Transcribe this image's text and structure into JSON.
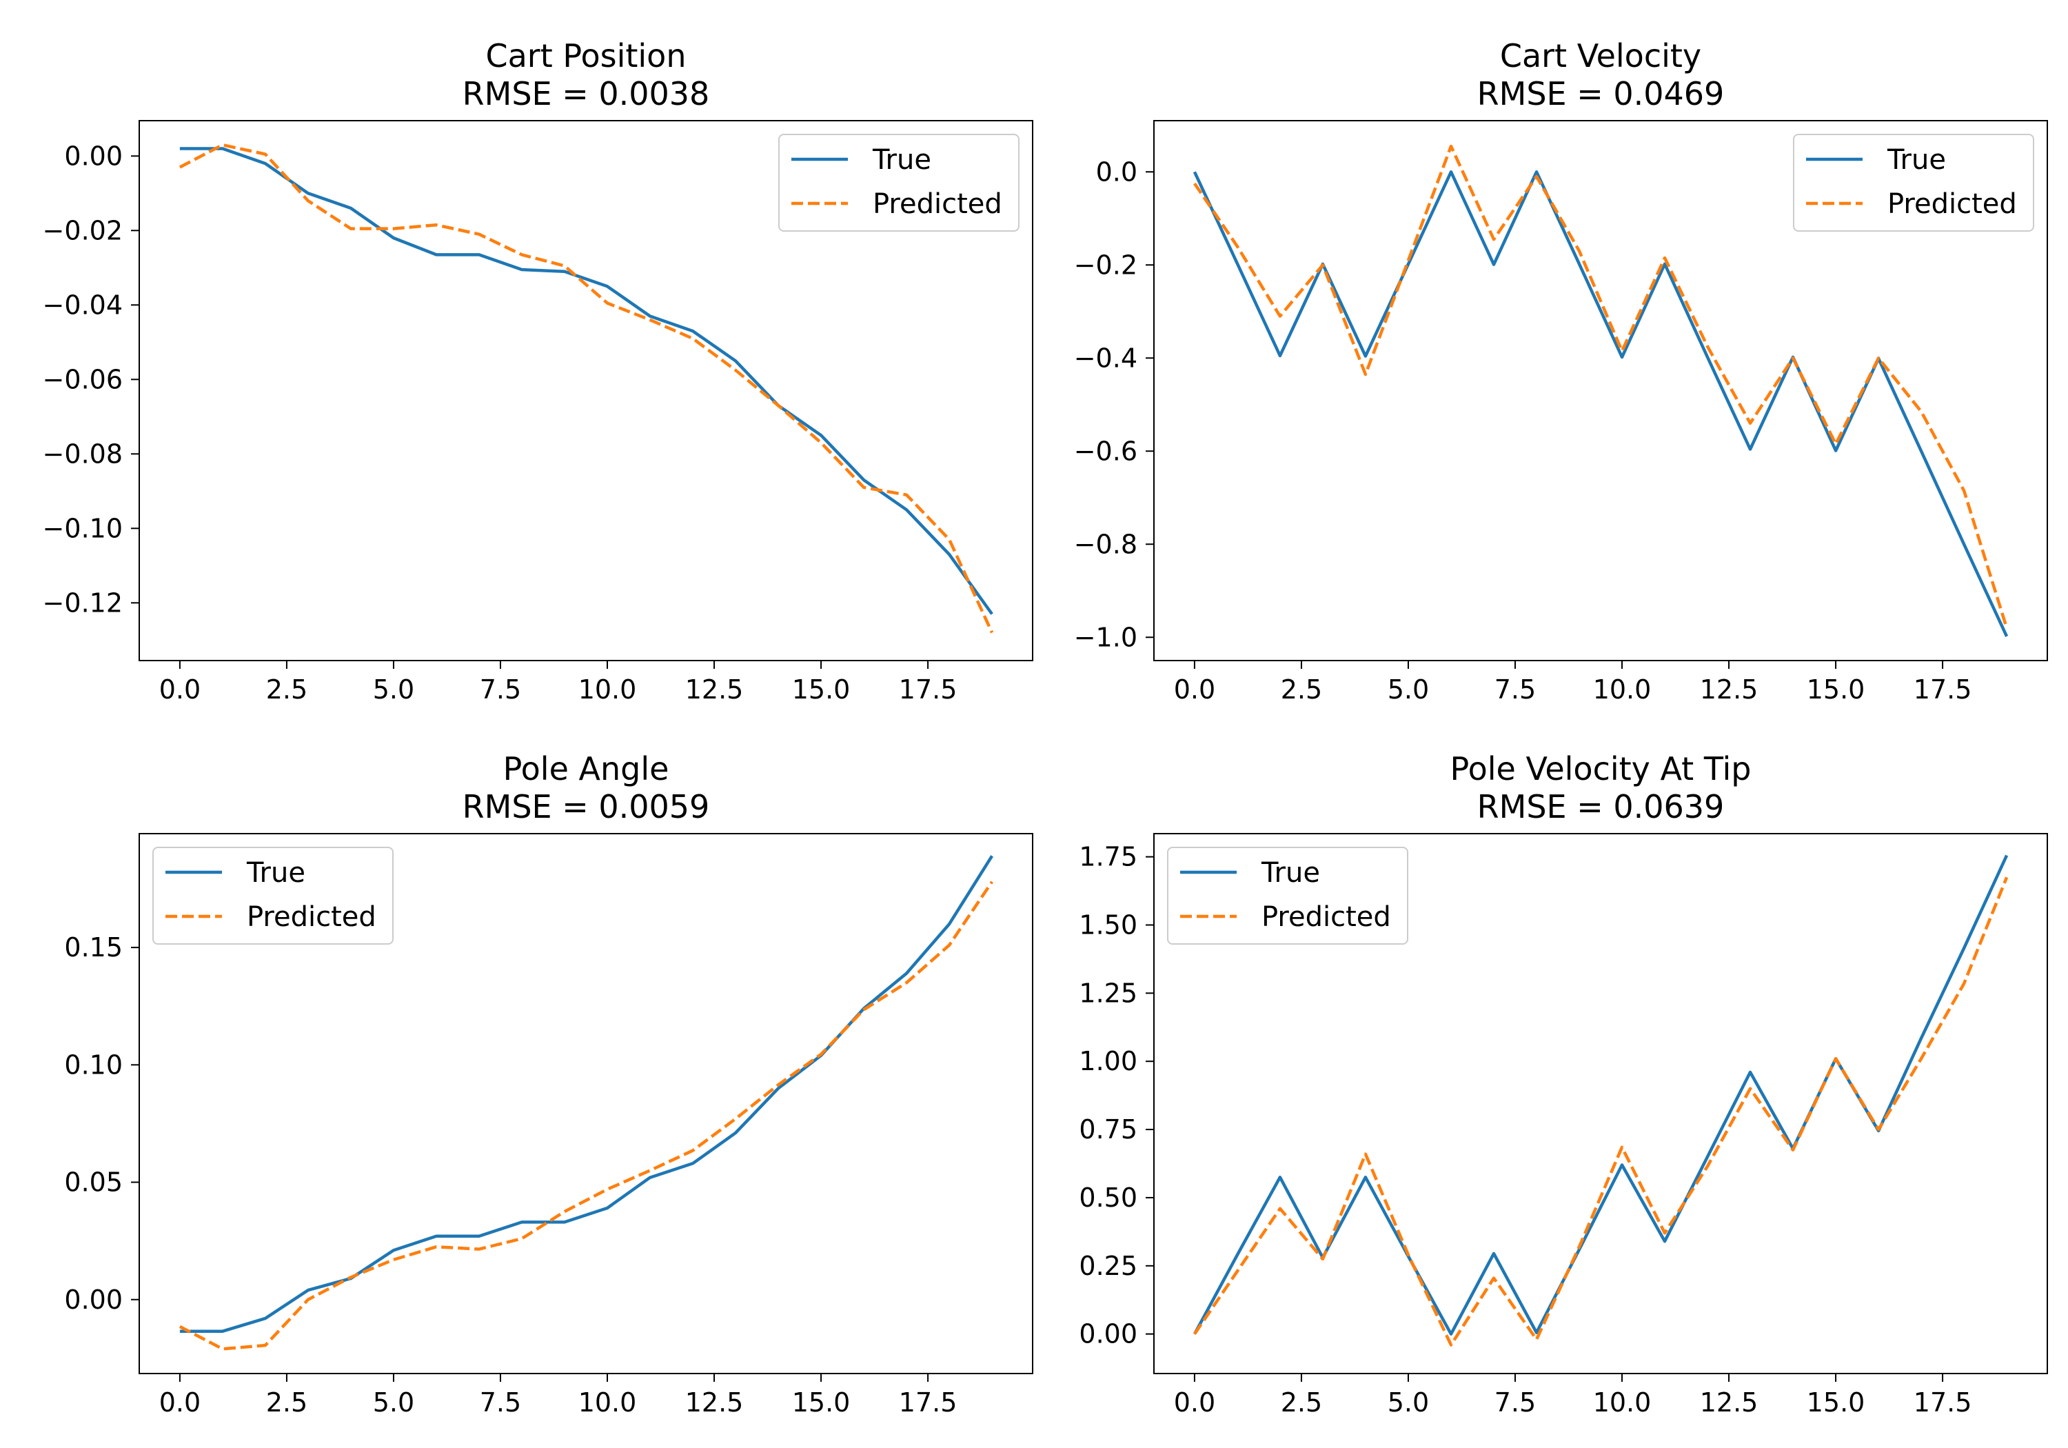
{
  "chart_data": [
    {
      "type": "line",
      "title": "Cart Position",
      "subtitle": "RMSE = 0.0038",
      "x": [
        0,
        1,
        2,
        3,
        4,
        5,
        6,
        7,
        8,
        9,
        10,
        11,
        12,
        13,
        14,
        15,
        16,
        17,
        18,
        19
      ],
      "series": [
        {
          "name": "True",
          "color": "#1f77b4",
          "style": "solid",
          "values": [
            0.002,
            0.002,
            -0.002,
            -0.01,
            -0.014,
            -0.022,
            -0.0265,
            -0.0265,
            -0.0305,
            -0.031,
            -0.035,
            -0.043,
            -0.047,
            -0.055,
            -0.067,
            -0.075,
            -0.087,
            -0.095,
            -0.107,
            -0.123
          ]
        },
        {
          "name": "Predicted",
          "color": "#ff7f0e",
          "style": "dashed",
          "values": [
            -0.003,
            0.003,
            0.0005,
            -0.012,
            -0.0195,
            -0.0195,
            -0.0185,
            -0.021,
            -0.0265,
            -0.0295,
            -0.0395,
            -0.044,
            -0.049,
            -0.0575,
            -0.067,
            -0.077,
            -0.089,
            -0.091,
            -0.103,
            -0.128
          ]
        }
      ],
      "xlim": [
        -0.95,
        19.95
      ],
      "ylim": [
        -0.1355,
        0.0095
      ],
      "xticks": [
        0,
        2.5,
        5,
        7.5,
        10,
        12.5,
        15,
        17.5
      ],
      "xtick_labels": [
        "0.0",
        "2.5",
        "5.0",
        "7.5",
        "10.0",
        "12.5",
        "15.0",
        "17.5"
      ],
      "yticks": [
        0,
        -0.02,
        -0.04,
        -0.06,
        -0.08,
        -0.1,
        -0.12
      ],
      "ytick_labels": [
        "0.00",
        "−0.02",
        "−0.04",
        "−0.06",
        "−0.08",
        "−0.10",
        "−0.12"
      ],
      "legend": "upper right",
      "grid": false
    },
    {
      "type": "line",
      "title": "Cart Velocity",
      "subtitle": "RMSE = 0.0469",
      "x": [
        0,
        1,
        2,
        3,
        4,
        5,
        6,
        7,
        8,
        9,
        10,
        11,
        12,
        13,
        14,
        15,
        16,
        17,
        18,
        19
      ],
      "series": [
        {
          "name": "True",
          "color": "#1f77b4",
          "style": "solid",
          "values": [
            0.0,
            -0.197,
            -0.395,
            -0.198,
            -0.396,
            -0.198,
            0.0,
            -0.199,
            0.0,
            -0.198,
            -0.398,
            -0.198,
            -0.398,
            -0.596,
            -0.398,
            -0.599,
            -0.401,
            -0.6,
            -0.8,
            -0.998
          ]
        },
        {
          "name": "Predicted",
          "color": "#ff7f0e",
          "style": "dashed",
          "values": [
            -0.025,
            -0.16,
            -0.31,
            -0.2,
            -0.435,
            -0.19,
            0.055,
            -0.145,
            -0.01,
            -0.17,
            -0.385,
            -0.185,
            -0.375,
            -0.54,
            -0.4,
            -0.585,
            -0.4,
            -0.515,
            -0.685,
            -0.98
          ]
        }
      ],
      "xlim": [
        -0.95,
        19.95
      ],
      "ylim": [
        -1.05,
        0.11
      ],
      "xticks": [
        0,
        2.5,
        5,
        7.5,
        10,
        12.5,
        15,
        17.5
      ],
      "xtick_labels": [
        "0.0",
        "2.5",
        "5.0",
        "7.5",
        "10.0",
        "12.5",
        "15.0",
        "17.5"
      ],
      "yticks": [
        0,
        -0.2,
        -0.4,
        -0.6,
        -0.8,
        -1.0
      ],
      "ytick_labels": [
        "0.0",
        "−0.2",
        "−0.4",
        "−0.6",
        "−0.8",
        "−1.0"
      ],
      "legend": "upper right",
      "grid": false
    },
    {
      "type": "line",
      "title": "Pole Angle",
      "subtitle": "RMSE = 0.0059",
      "x": [
        0,
        1,
        2,
        3,
        4,
        5,
        6,
        7,
        8,
        9,
        10,
        11,
        12,
        13,
        14,
        15,
        16,
        17,
        18,
        19
      ],
      "series": [
        {
          "name": "True",
          "color": "#1f77b4",
          "style": "solid",
          "values": [
            -0.0135,
            -0.0135,
            -0.008,
            0.004,
            0.009,
            0.021,
            0.027,
            0.027,
            0.033,
            0.033,
            0.039,
            0.052,
            0.058,
            0.071,
            0.09,
            0.104,
            0.124,
            0.139,
            0.16,
            0.189
          ]
        },
        {
          "name": "Predicted",
          "color": "#ff7f0e",
          "style": "dashed",
          "values": [
            -0.0115,
            -0.021,
            -0.0195,
            0.0,
            0.0095,
            0.017,
            0.0225,
            0.0215,
            0.026,
            0.0375,
            0.047,
            0.055,
            0.0635,
            0.077,
            0.0915,
            0.1045,
            0.1235,
            0.135,
            0.151,
            0.178
          ]
        }
      ],
      "xlim": [
        -0.95,
        19.95
      ],
      "ylim": [
        -0.0315,
        0.1985
      ],
      "xticks": [
        0,
        2.5,
        5,
        7.5,
        10,
        12.5,
        15,
        17.5
      ],
      "xtick_labels": [
        "0.0",
        "2.5",
        "5.0",
        "7.5",
        "10.0",
        "12.5",
        "15.0",
        "17.5"
      ],
      "yticks": [
        0,
        0.05,
        0.1,
        0.15
      ],
      "ytick_labels": [
        "0.00",
        "0.05",
        "0.10",
        "0.15"
      ],
      "legend": "upper left",
      "grid": false
    },
    {
      "type": "line",
      "title": "Pole Velocity At Tip",
      "subtitle": "RMSE = 0.0639",
      "x": [
        0,
        1,
        2,
        3,
        4,
        5,
        6,
        7,
        8,
        9,
        10,
        11,
        12,
        13,
        14,
        15,
        16,
        17,
        18,
        19
      ],
      "series": [
        {
          "name": "True",
          "color": "#1f77b4",
          "style": "solid",
          "values": [
            0.0,
            0.29,
            0.575,
            0.28,
            0.575,
            0.285,
            0.0,
            0.295,
            0.005,
            0.31,
            0.62,
            0.34,
            0.65,
            0.96,
            0.68,
            1.01,
            0.745,
            1.085,
            1.415,
            1.755
          ]
        },
        {
          "name": "Predicted",
          "color": "#ff7f0e",
          "style": "dashed",
          "values": [
            0.0,
            0.23,
            0.46,
            0.275,
            0.66,
            0.29,
            -0.04,
            0.205,
            -0.02,
            0.32,
            0.685,
            0.37,
            0.615,
            0.9,
            0.675,
            1.01,
            0.75,
            1.01,
            1.285,
            1.675
          ]
        }
      ],
      "xlim": [
        -0.95,
        19.95
      ],
      "ylim": [
        -0.145,
        1.835
      ],
      "xticks": [
        0,
        2.5,
        5,
        7.5,
        10,
        12.5,
        15,
        17.5
      ],
      "xtick_labels": [
        "0.0",
        "2.5",
        "5.0",
        "7.5",
        "10.0",
        "12.5",
        "15.0",
        "17.5"
      ],
      "yticks": [
        0,
        0.25,
        0.5,
        0.75,
        1.0,
        1.25,
        1.5,
        1.75
      ],
      "ytick_labels": [
        "0.00",
        "0.25",
        "0.50",
        "0.75",
        "1.00",
        "1.25",
        "1.50",
        "1.75"
      ],
      "legend": "upper left",
      "grid": false
    }
  ]
}
